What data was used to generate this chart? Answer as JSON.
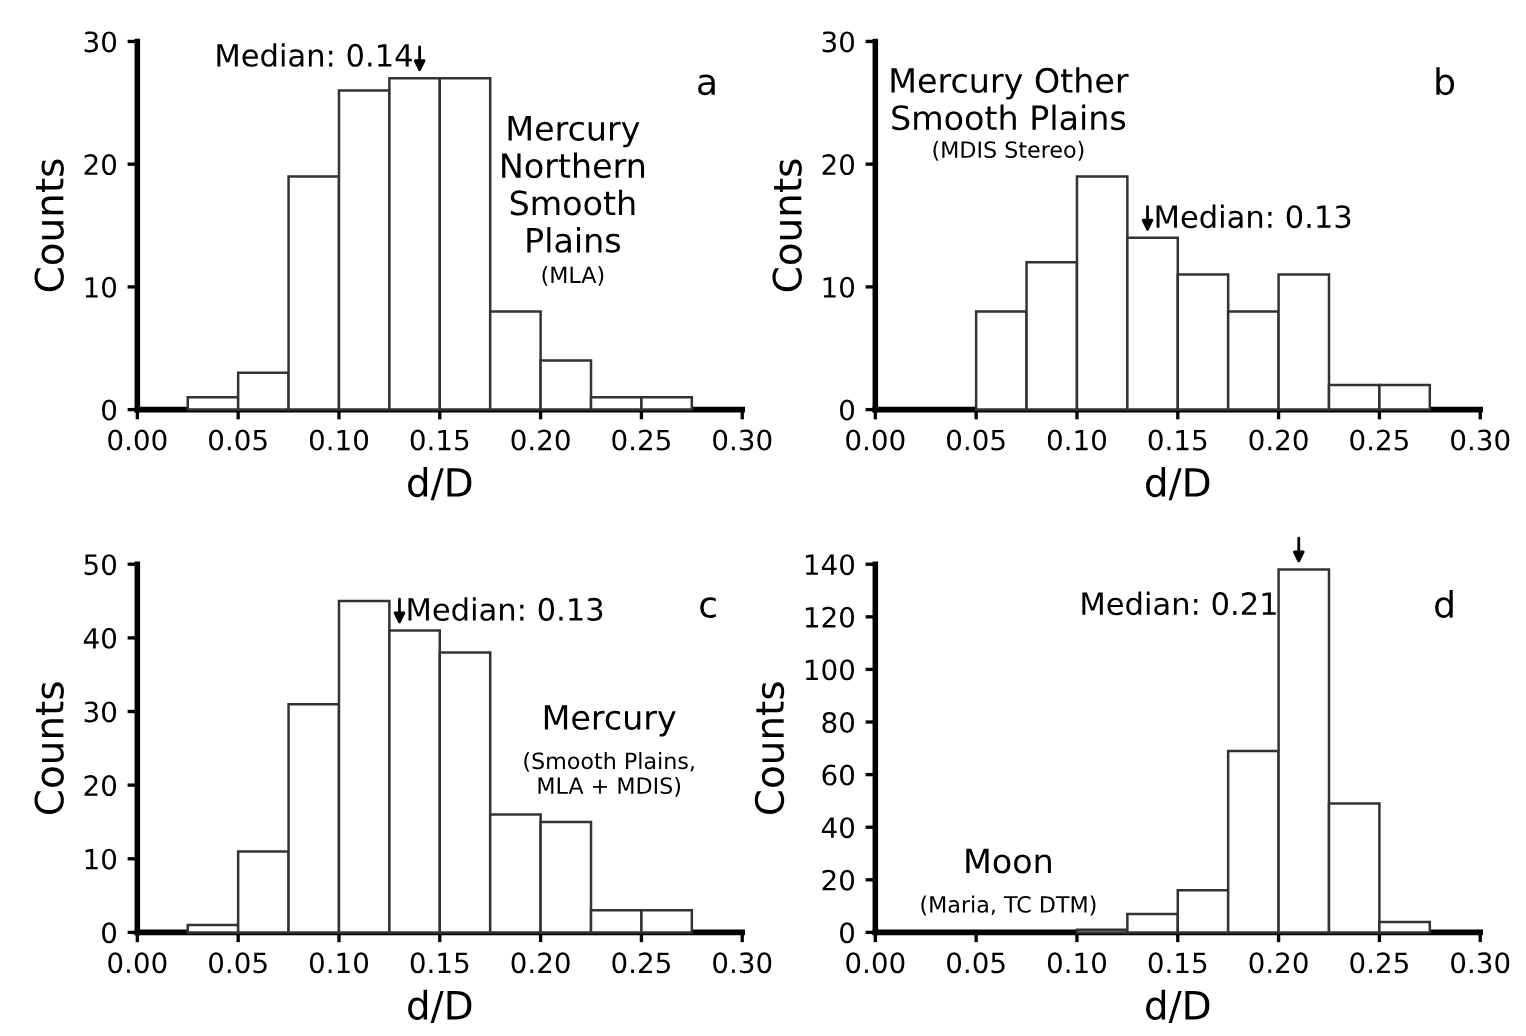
{
  "chart_data": [
    {
      "type": "histogram",
      "xlabel": "d/D",
      "ylabel": "Counts",
      "color": "#ffffff",
      "bins": [
        0.025,
        0.05,
        0.075,
        0.1,
        0.125,
        0.15,
        0.175,
        0.2,
        0.225,
        0.25,
        0.275
      ],
      "values": [
        1,
        3,
        19,
        26,
        27,
        27,
        8,
        4,
        1,
        1
      ],
      "xlim": [
        0,
        0.3
      ],
      "xticks": [
        {
          "value": 0,
          "label": "0.00"
        },
        {
          "value": 0.05,
          "label": "0.05"
        },
        {
          "value": 0.1,
          "label": "0.10"
        },
        {
          "value": 0.15,
          "label": "0.15"
        },
        {
          "value": 0.2,
          "label": "0.20"
        },
        {
          "value": 0.25,
          "label": "0.25"
        },
        {
          "value": 0.3,
          "label": "0.30"
        }
      ],
      "ylim": [
        0,
        30
      ],
      "yticks": [
        0,
        10,
        20,
        30
      ],
      "grid": false,
      "legend": false,
      "annotations": [
        {
          "text": "Median: 0.14",
          "x": 0.14,
          "y": 27
        },
        "a",
        "Mercury\nNorthern\nSmooth\nPlains",
        "(MLA)"
      ]
    },
    {
      "type": "histogram",
      "xlabel": "d/D",
      "ylabel": "Counts",
      "color": "#ffffff",
      "bins": [
        0.05,
        0.075,
        0.1,
        0.125,
        0.15,
        0.175,
        0.2,
        0.225,
        0.25,
        0.275
      ],
      "values": [
        8,
        12,
        19,
        14,
        11,
        8,
        11,
        2,
        2
      ],
      "xlim": [
        0,
        0.3
      ],
      "xticks": [
        {
          "value": 0,
          "label": "0.00"
        },
        {
          "value": 0.05,
          "label": "0.05"
        },
        {
          "value": 0.1,
          "label": "0.10"
        },
        {
          "value": 0.15,
          "label": "0.15"
        },
        {
          "value": 0.2,
          "label": "0.20"
        },
        {
          "value": 0.25,
          "label": "0.25"
        },
        {
          "value": 0.3,
          "label": "0.30"
        }
      ],
      "ylim": [
        0,
        30
      ],
      "yticks": [
        0,
        10,
        20,
        30
      ],
      "grid": false,
      "legend": false,
      "annotations": [
        {
          "text": "Median: 0.13",
          "x": 0.135,
          "y": 14
        },
        "b",
        "Mercury Other\nSmooth Plains",
        "(MDIS Stereo)"
      ]
    },
    {
      "type": "histogram",
      "xlabel": "d/D",
      "ylabel": "Counts",
      "color": "#ffffff",
      "bins": [
        0.025,
        0.05,
        0.075,
        0.1,
        0.125,
        0.15,
        0.175,
        0.2,
        0.225,
        0.25,
        0.275
      ],
      "values": [
        1,
        11,
        31,
        45,
        41,
        38,
        16,
        15,
        3,
        3
      ],
      "xlim": [
        0,
        0.3
      ],
      "xticks": [
        {
          "value": 0,
          "label": "0.00"
        },
        {
          "value": 0.05,
          "label": "0.05"
        },
        {
          "value": 0.1,
          "label": "0.10"
        },
        {
          "value": 0.15,
          "label": "0.15"
        },
        {
          "value": 0.2,
          "label": "0.20"
        },
        {
          "value": 0.25,
          "label": "0.25"
        },
        {
          "value": 0.3,
          "label": "0.30"
        }
      ],
      "ylim": [
        0,
        50
      ],
      "yticks": [
        0,
        10,
        20,
        30,
        40,
        50
      ],
      "grid": false,
      "legend": false,
      "annotations": [
        {
          "text": "Median: 0.13",
          "x": 0.13,
          "y": 41
        },
        "c",
        "Mercury",
        "(Smooth Plains,\nMLA + MDIS)"
      ]
    },
    {
      "type": "histogram",
      "xlabel": "d/D",
      "ylabel": "Counts",
      "color": "#ffffff",
      "bins": [
        0.1,
        0.125,
        0.15,
        0.175,
        0.2,
        0.225,
        0.25,
        0.275
      ],
      "values": [
        1,
        7,
        16,
        69,
        138,
        49,
        4
      ],
      "xlim": [
        0,
        0.3
      ],
      "xticks": [
        {
          "value": 0,
          "label": "0.00"
        },
        {
          "value": 0.05,
          "label": "0.05"
        },
        {
          "value": 0.1,
          "label": "0.10"
        },
        {
          "value": 0.15,
          "label": "0.15"
        },
        {
          "value": 0.2,
          "label": "0.20"
        },
        {
          "value": 0.25,
          "label": "0.25"
        },
        {
          "value": 0.3,
          "label": "0.30"
        }
      ],
      "ylim": [
        0,
        140
      ],
      "yticks": [
        0,
        20,
        40,
        60,
        80,
        100,
        120,
        140
      ],
      "grid": false,
      "legend": false,
      "annotations": [
        {
          "text": "Median: 0.21",
          "x": 0.21,
          "y": 138
        },
        "d",
        "Moon",
        "(Maria, TC DTM)"
      ]
    }
  ]
}
